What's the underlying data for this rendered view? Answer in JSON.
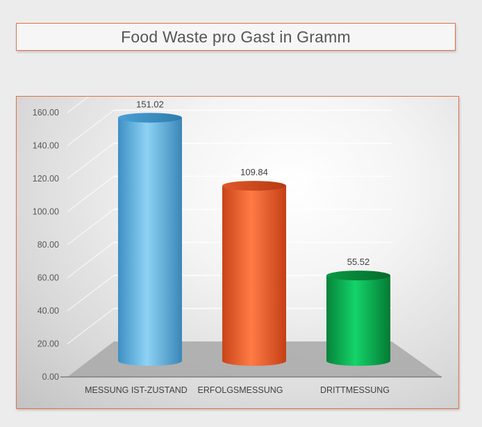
{
  "chart_data": {
    "type": "bar",
    "title": "Food Waste pro Gast in Gramm",
    "categories": [
      "MESSUNG IST-ZUSTAND",
      "ERFOLGSMESSUNG",
      "DRITTMESSUNG"
    ],
    "values": [
      151.02,
      109.84,
      55.52
    ],
    "data_labels": [
      "151.02",
      "109.84",
      "55.52"
    ],
    "y_ticks": [
      "0.00",
      "20.00",
      "40.00",
      "60.00",
      "80.00",
      "100.00",
      "120.00",
      "140.00",
      "160.00"
    ],
    "ylim": [
      0,
      160
    ],
    "grid": true,
    "legend": "none",
    "style": "3d-cylinder",
    "colors": {
      "bar1": "#5bb6e4",
      "bar2": "#ea5f2d",
      "bar3": "#0ea849",
      "border": "#e2714a"
    }
  }
}
